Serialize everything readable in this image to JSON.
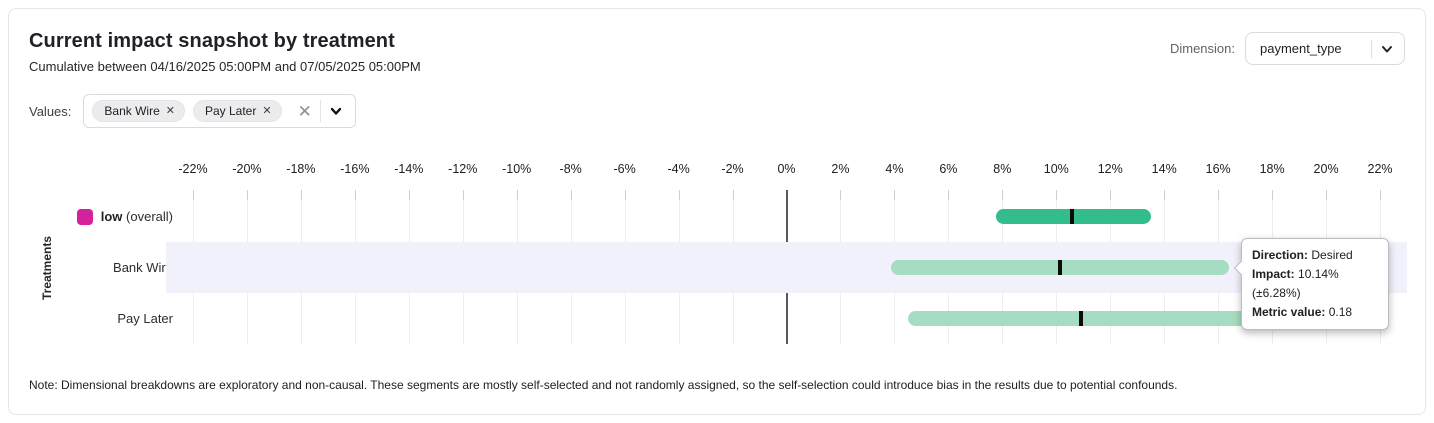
{
  "header": {
    "title": "Current impact snapshot by treatment",
    "subtitle": "Cumulative between 04/16/2025 05:00PM and 07/05/2025 05:00PM",
    "dimension_label": "Dimension:",
    "dimension_value": "payment_type"
  },
  "filters": {
    "label": "Values:",
    "chips": [
      {
        "label": "Bank Wire",
        "remove_icon": "x"
      },
      {
        "label": "Pay Later",
        "remove_icon": "x"
      }
    ],
    "clear_icon": "x",
    "dropdown_icon": "chevron-down"
  },
  "chart_data": {
    "type": "bar",
    "orientation": "horizontal-interval",
    "ylabel": "Treatments",
    "x_axis": {
      "min": -23,
      "max": 23,
      "tick_step": 2,
      "ticks": [
        -22,
        -20,
        -18,
        -16,
        -14,
        -12,
        -10,
        -8,
        -6,
        -4,
        -2,
        0,
        2,
        4,
        6,
        8,
        10,
        12,
        14,
        16,
        18,
        20,
        22
      ],
      "tick_suffix": "%",
      "grid": true
    },
    "rows": [
      {
        "label": "low",
        "label_suffix": " (overall)",
        "swatch_color": "#d6219f",
        "low": 7.75,
        "high": 13.5,
        "center": 10.6,
        "bar_color": "#33bc8c",
        "highlighted": false
      },
      {
        "label": "Bank Wire",
        "label_suffix": "",
        "swatch_color": null,
        "low": 3.86,
        "high": 16.42,
        "center": 10.14,
        "bar_color": "#a6dcc1",
        "highlighted": true
      },
      {
        "label": "Pay Later",
        "label_suffix": "",
        "swatch_color": null,
        "low": 4.5,
        "high": 17.3,
        "center": 10.9,
        "bar_color": "#a6dcc1",
        "highlighted": false
      }
    ],
    "center_tick_color": "#0b0b0b",
    "zero_line_color": "#56565e",
    "highlight_band_color": "#f0f1fb"
  },
  "tooltip": {
    "direction_label": "Direction:",
    "direction_value": "Desired",
    "impact_label": "Impact:",
    "impact_value": "10.14% (±6.28%)",
    "metric_label": "Metric value:",
    "metric_value": "0.18"
  },
  "note": "Note: Dimensional breakdowns are exploratory and non-causal. These segments are mostly self-selected and not randomly assigned, so the self-selection could introduce bias in the results due to potential confounds."
}
